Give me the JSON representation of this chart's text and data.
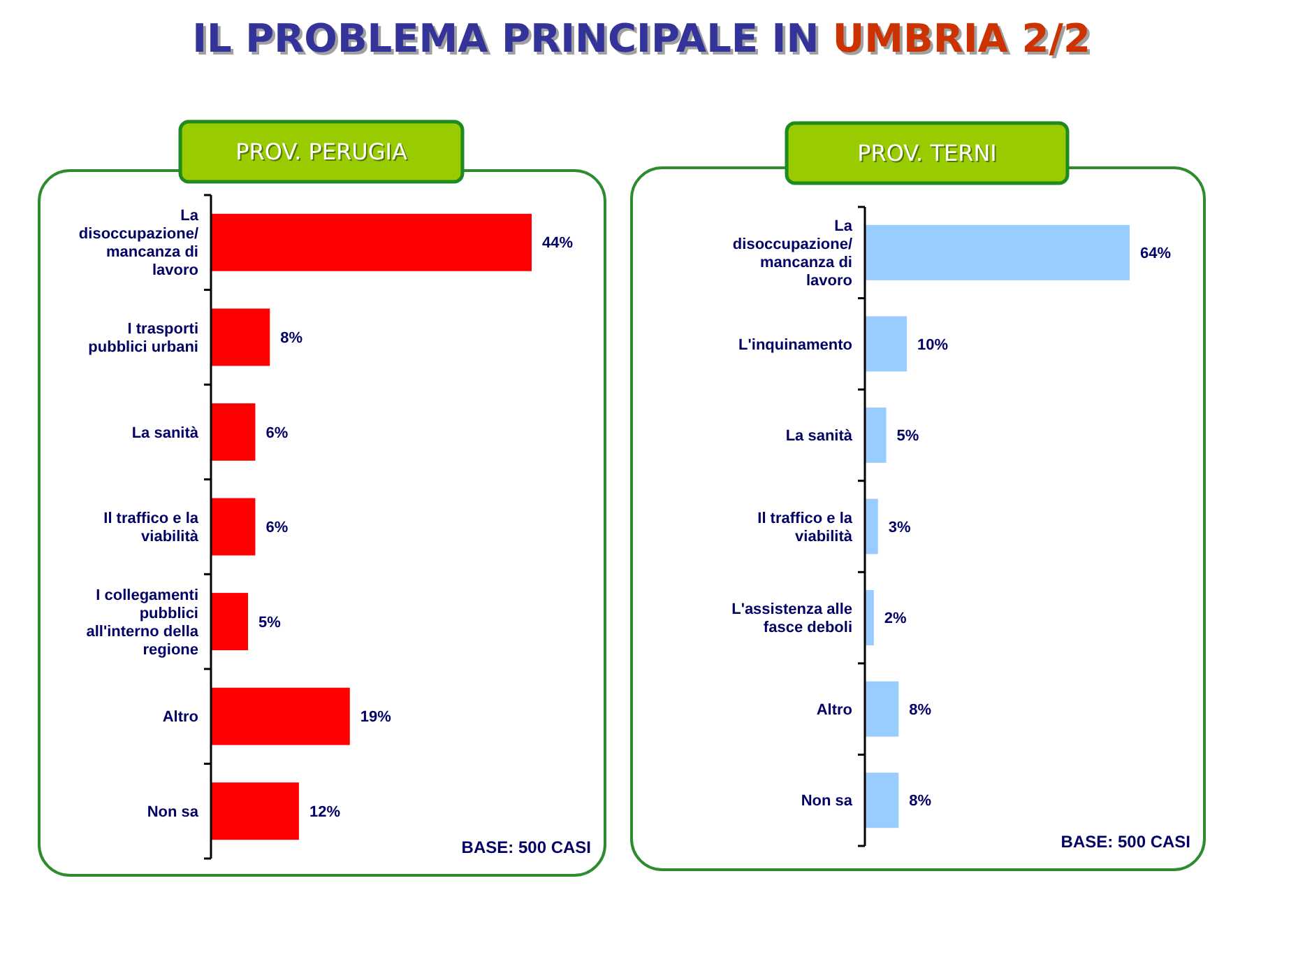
{
  "chart_data": [
    {
      "type": "bar",
      "orientation": "horizontal",
      "title": "IL PROBLEMA PRINCIPALE IN UMBRIA 2/2",
      "subtitle": "PROV. PERUGIA",
      "categories": [
        "La disoccupazione/ mancanza di lavoro",
        "I trasporti pubblici urbani",
        "La sanità",
        "Il traffico e la viabilità",
        "I collegamenti pubblici all'interno della regione",
        "Altro",
        "Non sa"
      ],
      "values": [
        44,
        8,
        6,
        6,
        5,
        19,
        12
      ],
      "value_labels": [
        "44%",
        "8%",
        "6%",
        "6%",
        "5%",
        "19%",
        "12%"
      ],
      "color": "#ff0000",
      "annotations": [
        "BASE: 500 CASI"
      ]
    },
    {
      "type": "bar",
      "orientation": "horizontal",
      "subtitle": "PROV. TERNI",
      "categories": [
        "La disoccupazione/ mancanza di lavoro",
        "L'inquinamento",
        "La sanità",
        "Il traffico e la viabilità",
        "L'assistenza alle fasce deboli",
        "Altro",
        "Non sa"
      ],
      "values": [
        64,
        10,
        5,
        3,
        2,
        8,
        8
      ],
      "value_labels": [
        "64%",
        "10%",
        "5%",
        "3%",
        "2%",
        "8%",
        "8%"
      ],
      "color": "#99ccff",
      "annotations": [
        "BASE: 500 CASI"
      ]
    }
  ]
}
